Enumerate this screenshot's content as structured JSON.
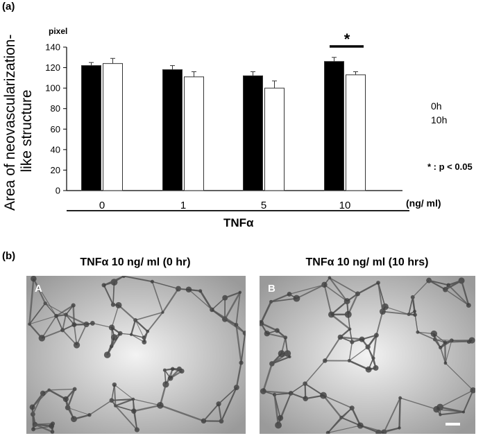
{
  "panel_a_label": "(a)",
  "panel_b_label": "(b)",
  "ylabel_lines": [
    "Area of neovascularization-",
    "like structure"
  ],
  "y_unit": "pixel",
  "x_unit": "(ng/ ml)",
  "group_label": "TNFα",
  "legend": [
    "0h",
    "10h"
  ],
  "sig_marker": "*",
  "sig_note": "* : p < 0.05",
  "chart_data": {
    "type": "bar",
    "categories": [
      "0",
      "1",
      "5",
      "10"
    ],
    "series": [
      {
        "name": "0h",
        "values": [
          122,
          118,
          112,
          126
        ],
        "errors": [
          3,
          4,
          4,
          4
        ],
        "color": "#000000"
      },
      {
        "name": "10h",
        "values": [
          124,
          111,
          100,
          113
        ],
        "errors": [
          5,
          5,
          7,
          3
        ],
        "color": "#ffffff"
      }
    ],
    "xlabel": "TNFα",
    "ylabel": "Area of neovascularization-like structure",
    "ylim": [
      0,
      140
    ],
    "yticks": [
      0,
      20,
      40,
      60,
      80,
      100,
      120,
      140
    ],
    "significance": [
      {
        "category": "10",
        "label": "*"
      }
    ],
    "grid": false
  },
  "photos": [
    {
      "title": "TNFα 10 ng/ ml (0 hr)",
      "letter": "A"
    },
    {
      "title": "TNFα 10 ng/ ml (10 hrs)",
      "letter": "B"
    }
  ],
  "colors": {
    "bar_0h": "#000000",
    "bar_10h": "#ffffff",
    "photo_bg": "#c9c9c9"
  }
}
